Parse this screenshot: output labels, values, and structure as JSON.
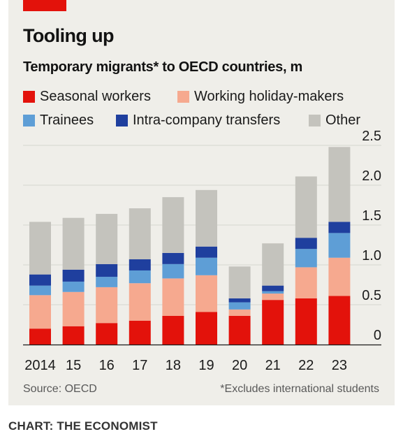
{
  "header": {
    "title": "Tooling up",
    "subtitle": "Temporary migrants* to OECD countries, m"
  },
  "footer": {
    "source": "Source: OECD",
    "footnote": "*Excludes international students",
    "credit": "CHART: THE ECONOMIST"
  },
  "legend": [
    {
      "label": "Seasonal workers",
      "color": "#e3120b"
    },
    {
      "label": "Working holiday-makers",
      "color": "#f6a98f"
    },
    {
      "label": "Trainees",
      "color": "#5e9ed6"
    },
    {
      "label": "Intra-company transfers",
      "color": "#1f3f9e"
    },
    {
      "label": "Other",
      "color": "#c4c3bd"
    }
  ],
  "chart_data": {
    "type": "bar",
    "stacked": true,
    "title": "Tooling up",
    "subtitle": "Temporary migrants* to OECD countries, m",
    "categories": [
      "2014",
      "15",
      "16",
      "17",
      "18",
      "19",
      "20",
      "21",
      "22",
      "23"
    ],
    "series": [
      {
        "name": "Seasonal workers",
        "color": "#e3120b",
        "values": [
          0.2,
          0.23,
          0.27,
          0.3,
          0.36,
          0.41,
          0.36,
          0.56,
          0.58,
          0.61
        ]
      },
      {
        "name": "Working holiday-makers",
        "color": "#f6a98f",
        "values": [
          0.42,
          0.43,
          0.45,
          0.47,
          0.47,
          0.46,
          0.08,
          0.08,
          0.39,
          0.48
        ]
      },
      {
        "name": "Trainees",
        "color": "#5e9ed6",
        "values": [
          0.12,
          0.13,
          0.13,
          0.16,
          0.18,
          0.22,
          0.09,
          0.03,
          0.23,
          0.31
        ]
      },
      {
        "name": "Intra-company transfers",
        "color": "#1f3f9e",
        "values": [
          0.14,
          0.15,
          0.16,
          0.14,
          0.14,
          0.14,
          0.05,
          0.07,
          0.14,
          0.14
        ]
      },
      {
        "name": "Other",
        "color": "#c4c3bd",
        "values": [
          0.66,
          0.65,
          0.63,
          0.64,
          0.7,
          0.71,
          0.4,
          0.53,
          0.77,
          0.94
        ]
      }
    ],
    "ylim": [
      0,
      2.5
    ],
    "yticks": [
      0,
      0.5,
      1.0,
      1.5,
      2.0,
      2.5
    ],
    "ytick_labels": [
      "0",
      "0.5",
      "1.0",
      "1.5",
      "2.0",
      "2.5"
    ],
    "y_axis_side": "right",
    "grid": true,
    "legend_position": "top"
  }
}
